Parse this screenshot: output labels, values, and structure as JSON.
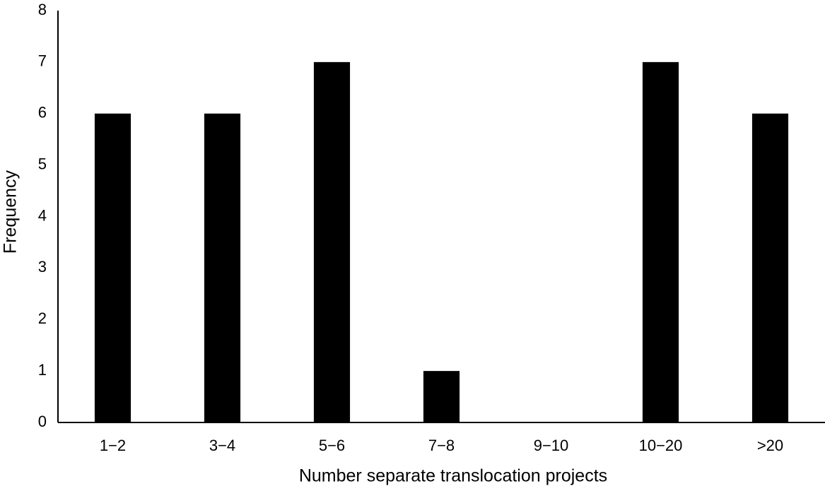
{
  "chart_data": {
    "type": "bar",
    "x_label": "Number separate translocation projects",
    "y_label": "Frequency",
    "categories": [
      "1−2",
      "3−4",
      "5−6",
      "7−8",
      "9−10",
      "10−20",
      ">20"
    ],
    "values": [
      6,
      6,
      7,
      1,
      0,
      7,
      6
    ],
    "color": "#000000",
    "ylim": [
      0,
      8
    ],
    "yticks": [
      0,
      1,
      2,
      3,
      4,
      5,
      6,
      7,
      8
    ],
    "grid": false
  }
}
